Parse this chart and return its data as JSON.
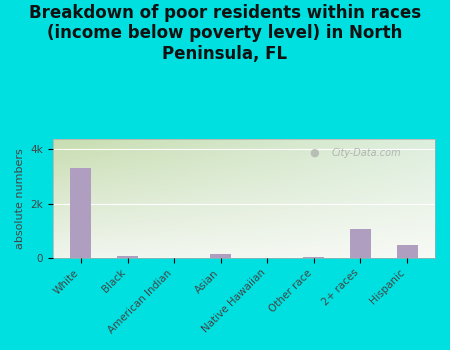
{
  "title": "Breakdown of poor residents within races\n(income below poverty level) in North\nPeninsula, FL",
  "categories": [
    "White",
    "Black",
    "American Indian",
    "Asian",
    "Native Hawaiian",
    "Other race",
    "2+ races",
    "Hispanic"
  ],
  "values": [
    3300,
    60,
    0,
    150,
    0,
    50,
    1050,
    480
  ],
  "bar_color": "#b09ec0",
  "ylabel": "absolute numbers",
  "ytick_labels": [
    "0",
    "2k",
    "4k"
  ],
  "ytick_values": [
    0,
    2000,
    4000
  ],
  "ylim": [
    0,
    4400
  ],
  "bg_color_topleft": "#c8ddb0",
  "bg_color_topright": "#ddeedd",
  "bg_color_bottom": "#f0f5ee",
  "outer_bg": "#00e0e0",
  "watermark": "City-Data.com",
  "title_fontsize": 12,
  "ylabel_fontsize": 8,
  "tick_fontsize": 7.5
}
